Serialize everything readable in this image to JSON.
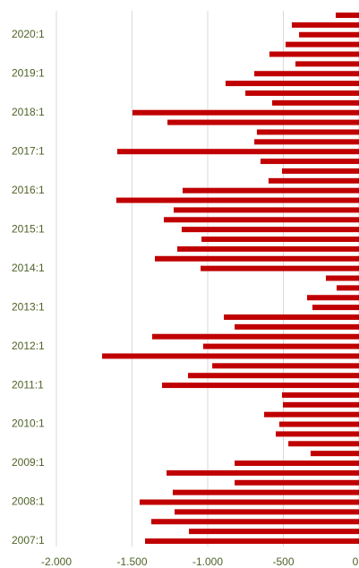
{
  "chart_data": {
    "type": "bar",
    "orientation": "horizontal",
    "color": "#c00000",
    "categories": [
      "2007:1",
      null,
      null,
      null,
      "2008:1",
      null,
      null,
      null,
      "2009:1",
      null,
      null,
      null,
      "2010:1",
      null,
      null,
      null,
      "2011:1",
      null,
      null,
      null,
      "2012:1",
      null,
      null,
      null,
      "2013:1",
      null,
      null,
      null,
      "2014:1",
      null,
      null,
      null,
      "2015:1",
      null,
      null,
      null,
      "2016:1",
      null,
      null,
      null,
      "2017:1",
      null,
      null,
      null,
      "2018:1",
      null,
      null,
      null,
      "2019:1",
      null,
      null,
      null,
      "2020:1",
      null,
      null
    ],
    "values": [
      -1414,
      -1124,
      -1373,
      -1219,
      -1450,
      -1231,
      -822,
      -1272,
      -822,
      -320,
      -467,
      -550,
      -527,
      -627,
      -503,
      -509,
      -1302,
      -1130,
      -970,
      -1698,
      -1030,
      -1367,
      -822,
      -893,
      -308,
      -343,
      -148,
      -219,
      -1047,
      -1349,
      -1201,
      -1041,
      -1172,
      -1290,
      -1225,
      -1604,
      -1166,
      -598,
      -509,
      -651,
      -1598,
      -692,
      -675,
      -1266,
      -1497,
      -574,
      -751,
      -882,
      -692,
      -420,
      -592,
      -485,
      -396,
      -444,
      -154
    ],
    "xlim": [
      -2000,
      0
    ],
    "xticks": [
      {
        "value": -2000,
        "label": "-2.000"
      },
      {
        "value": -1500,
        "label": "-1.500"
      },
      {
        "value": -1000,
        "label": "-1.000"
      },
      -500,
      0
    ],
    "grid": true
  }
}
